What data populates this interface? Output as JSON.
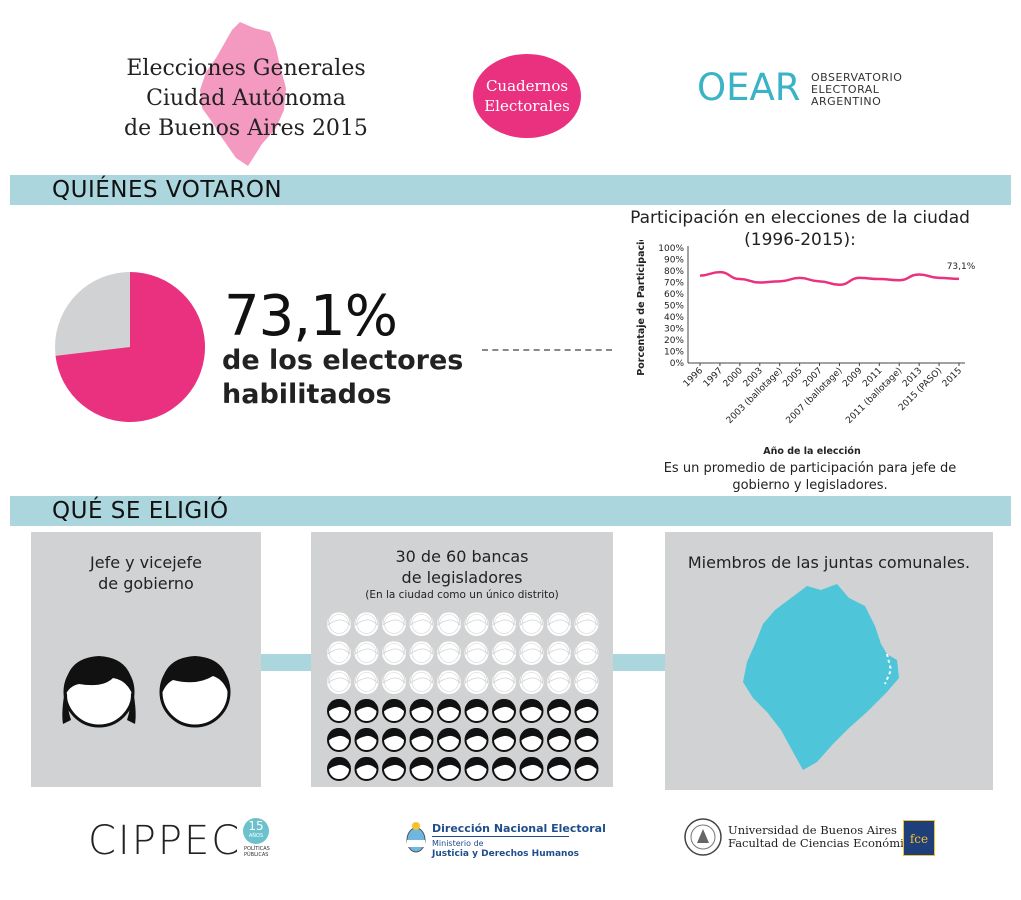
{
  "header": {
    "title_lines": [
      "Elecciones Generales",
      "Ciudad Autónoma",
      "de Buenos Aires 2015"
    ],
    "badge_lines": [
      "Cuadernos",
      "Electorales"
    ],
    "oear": {
      "logo": "OEAR",
      "sub": [
        "OBSERVATORIO",
        "ELECTORAL",
        "ARGENTINO"
      ]
    }
  },
  "section1": {
    "title": "QUIÉNES VOTARON",
    "percent": "73,1%",
    "sub_lines": [
      "de los electores",
      "habilitados"
    ],
    "pie": {
      "value": 73.1,
      "colors": {
        "main": "#ea3180",
        "rest": "#d1d2d3"
      }
    }
  },
  "chart_title_lines": [
    "Participación en elecciones de la ciudad",
    "(1996-2015):"
  ],
  "chart_data": {
    "type": "line",
    "title": "Participación en elecciones de la ciudad (1996-2015):",
    "xlabel": "Año de la elección",
    "ylabel": "Porcentaje de Participación",
    "ylim": [
      0,
      100
    ],
    "yticks": [
      "100%",
      "90%",
      "80%",
      "70%",
      "60%",
      "50%",
      "40%",
      "30%",
      "20%",
      "10%",
      "0%"
    ],
    "categories": [
      "1996",
      "1997",
      "2000",
      "2003",
      "2003 (ballotage)",
      "2005",
      "2007",
      "2007 (ballotage)",
      "2009",
      "2011",
      "2011 (ballotage)",
      "2013",
      "2015 (PASO)",
      "2015"
    ],
    "values": [
      76,
      79,
      73,
      70,
      71,
      74,
      71,
      68,
      74,
      73,
      72,
      77,
      74,
      73.1
    ],
    "end_label": "73,1%",
    "color": "#ea3180"
  },
  "chart_caption_lines": [
    "Es un promedio de participación para jefe de",
    "gobierno y legisladores."
  ],
  "section2": {
    "title": "QUÉ SE ELIGIÓ",
    "panel1": {
      "lines": [
        "Jefe y vicejefe",
        "de gobierno"
      ]
    },
    "panel2": {
      "lines": [
        "30 de 60 bancas",
        "de legisladores"
      ],
      "note": "(En la ciudad como un único distrito)"
    },
    "panel3": {
      "title": "Miembros de las juntas comunales."
    }
  },
  "footer": {
    "cippec": "CIPPEC",
    "cippec_badge": "15",
    "cippec_badge_sub": "AÑOS",
    "cippec_tag": [
      "POLÍTICAS",
      "PÚBLICAS"
    ],
    "dne_title": "Dirección Nacional Electoral",
    "dne_sub": [
      "Ministerio de",
      "Justicia y Derechos Humanos"
    ],
    "uba_lines": [
      "Universidad de Buenos Aires",
      "Facultad de Ciencias Económicas"
    ],
    "fce": "fce"
  },
  "colors": {
    "accent": "#ea3180",
    "band": "#abd6de",
    "panel": "#d1d2d3",
    "map": "#4ec5d9"
  }
}
